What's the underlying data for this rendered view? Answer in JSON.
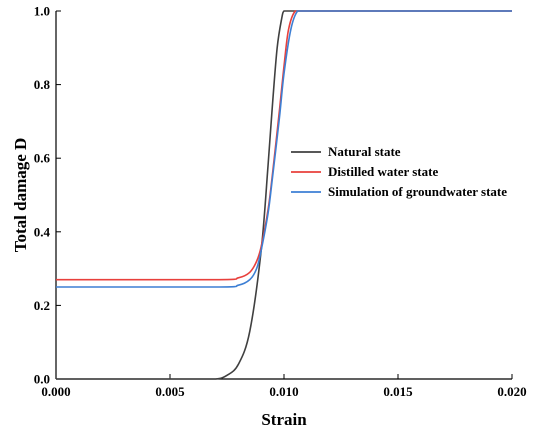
{
  "chart_data": {
    "type": "line",
    "xlabel": "Strain",
    "ylabel": "Total damage D",
    "xlim": [
      0.0,
      0.02
    ],
    "ylim": [
      0.0,
      1.0
    ],
    "x_ticks": [
      "0.000",
      "0.005",
      "0.010",
      "0.015",
      "0.020"
    ],
    "y_ticks": [
      "0.0",
      "0.2",
      "0.4",
      "0.6",
      "0.8",
      "1.0"
    ],
    "grid": false,
    "legend_position": "center-right",
    "series": [
      {
        "name": "Natural state",
        "color": "#404040",
        "x": [
          0.0,
          0.006,
          0.007,
          0.0075,
          0.008,
          0.0085,
          0.009,
          0.0093,
          0.0095,
          0.0097,
          0.0099,
          0.01,
          0.0102,
          0.011,
          0.015,
          0.02
        ],
        "y": [
          0.0,
          0.0,
          0.0,
          0.01,
          0.04,
          0.13,
          0.35,
          0.58,
          0.75,
          0.9,
          0.98,
          1.0,
          1.0,
          1.0,
          1.0,
          1.0
        ]
      },
      {
        "name": "Distilled water state",
        "color": "#e8403c",
        "x": [
          0.0,
          0.007,
          0.008,
          0.0085,
          0.0088,
          0.009,
          0.0093,
          0.0095,
          0.0098,
          0.01,
          0.0102,
          0.0105,
          0.011,
          0.015,
          0.02
        ],
        "y": [
          0.27,
          0.27,
          0.275,
          0.29,
          0.32,
          0.36,
          0.46,
          0.56,
          0.73,
          0.85,
          0.95,
          1.0,
          1.0,
          1.0,
          1.0
        ]
      },
      {
        "name": "Simulation of groundwater state",
        "color": "#3d7fd4",
        "x": [
          0.0,
          0.007,
          0.008,
          0.0085,
          0.0088,
          0.009,
          0.0093,
          0.0095,
          0.0098,
          0.01,
          0.0103,
          0.0106,
          0.011,
          0.015,
          0.02
        ],
        "y": [
          0.25,
          0.25,
          0.255,
          0.27,
          0.3,
          0.35,
          0.45,
          0.55,
          0.71,
          0.83,
          0.95,
          1.0,
          1.0,
          1.0,
          1.0
        ]
      }
    ]
  }
}
